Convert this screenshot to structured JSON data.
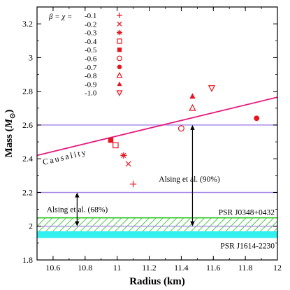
{
  "chart_data": {
    "type": "scatter",
    "xlabel": "Radius (km)",
    "ylabel_main": "Mass (",
    "ylabel_sym": "M",
    "ylabel_sub": "⊙",
    "ylabel_close": ")",
    "xlim": [
      10.5,
      12.0
    ],
    "ylim": [
      1.8,
      3.3
    ],
    "xticks": [
      10.6,
      10.8,
      11,
      11.2,
      11.4,
      11.6,
      11.8,
      12
    ],
    "xtick_labels": [
      "10.6",
      "10.8",
      "11",
      "11.2",
      "11.4",
      "11.6",
      "11.8",
      "12"
    ],
    "yticks": [
      1.8,
      2.0,
      2.2,
      2.4,
      2.6,
      2.8,
      3.0,
      3.2
    ],
    "ytick_labels": [
      "1.8",
      "2",
      "2.2",
      "2.4",
      "2.6",
      "2.8",
      "3",
      "3.2"
    ],
    "legend_title": "β = χ =",
    "legend_position": "top-left",
    "colors": {
      "points": "#e8141e",
      "causality": "#e6197d",
      "bounds": "#a98be8",
      "hatch": "#39c630",
      "cyan": "#33f0f0"
    },
    "series": [
      {
        "name": "-0.1",
        "marker": "plus",
        "x": 11.1,
        "y": 2.25
      },
      {
        "name": "-0.2",
        "marker": "x",
        "x": 11.07,
        "y": 2.37
      },
      {
        "name": "-0.3",
        "marker": "asterisk",
        "x": 11.04,
        "y": 2.42
      },
      {
        "name": "-0.4",
        "marker": "square-open",
        "x": 10.99,
        "y": 2.48
      },
      {
        "name": "-0.5",
        "marker": "square-filled",
        "x": 10.96,
        "y": 2.51
      },
      {
        "name": "-0.6",
        "marker": "circle-open",
        "x": 11.4,
        "y": 2.58
      },
      {
        "name": "-0.7",
        "marker": "circle-filled",
        "x": 11.87,
        "y": 2.64
      },
      {
        "name": "-0.8",
        "marker": "triangle-open",
        "x": 11.47,
        "y": 2.7
      },
      {
        "name": "-0.9",
        "marker": "triangle-filled",
        "x": 11.47,
        "y": 2.77
      },
      {
        "name": "-1.0",
        "marker": "triangle-down-open",
        "x": 11.59,
        "y": 2.82
      }
    ],
    "causality_line": {
      "label": "Causality",
      "start": [
        10.5,
        2.42
      ],
      "end": [
        12.0,
        2.765
      ]
    },
    "horizontal_lines": [
      2.6,
      2.2
    ],
    "bands": [
      {
        "label": "PSR J0348+0432",
        "ymin": 1.97,
        "ymax": 2.05,
        "style": "hatch"
      },
      {
        "label": "PSR J1614-2230",
        "ymin": 1.93,
        "ymax": 1.97,
        "style": "solid"
      }
    ],
    "annotations": [
      {
        "label": "Alsing et al. (90%)",
        "arrow_x": 11.47,
        "y_from": 2.0,
        "y_to": 2.6,
        "text_x": 11.26,
        "text_y": 2.28
      },
      {
        "label": "Alsing et al. (68%)",
        "arrow_x": 10.75,
        "y_from": 2.0,
        "y_to": 2.2,
        "text_x": 10.56,
        "text_y": 2.1
      }
    ],
    "inner_line": 2.0
  }
}
